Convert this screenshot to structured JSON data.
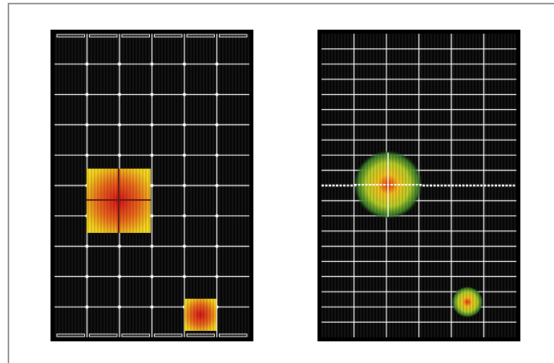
{
  "panels": [
    {
      "columns": 6,
      "rows": 10
    },
    {
      "columns": 6,
      "rows": 20
    }
  ]
}
